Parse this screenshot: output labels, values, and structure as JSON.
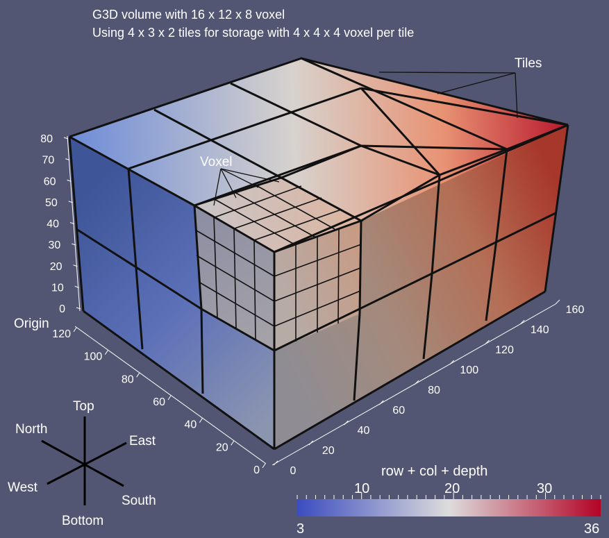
{
  "title": {
    "line1": "G3D volume with 16 x 12 x 8 voxel",
    "line2": "Using 4 x 3 x 2 tiles for storage with 4 x 4 x 4 voxel per tile"
  },
  "labels": {
    "tiles": "Tiles",
    "voxel": "Voxel",
    "origin": "Origin"
  },
  "axes": {
    "z_ticks": [
      "80",
      "70",
      "60",
      "50",
      "40",
      "30",
      "20",
      "10",
      "0"
    ],
    "y_ticks": [
      "120",
      "100",
      "80",
      "60",
      "40",
      "20",
      "0"
    ],
    "x_ticks": [
      "0",
      "20",
      "40",
      "60",
      "80",
      "100",
      "120",
      "140",
      "160"
    ]
  },
  "compass": {
    "top": "Top",
    "bottom": "Bottom",
    "north": "North",
    "south": "South",
    "east": "East",
    "west": "West"
  },
  "colorbar": {
    "title": "row + col + depth",
    "min": "3",
    "max": "36",
    "ticks": [
      "10",
      "20",
      "30"
    ],
    "color_low": "#3b4cc0",
    "color_mid": "#dddcdc",
    "color_high": "#b40426"
  },
  "colors": {
    "background": "#525672",
    "grid_line": "#111111"
  }
}
